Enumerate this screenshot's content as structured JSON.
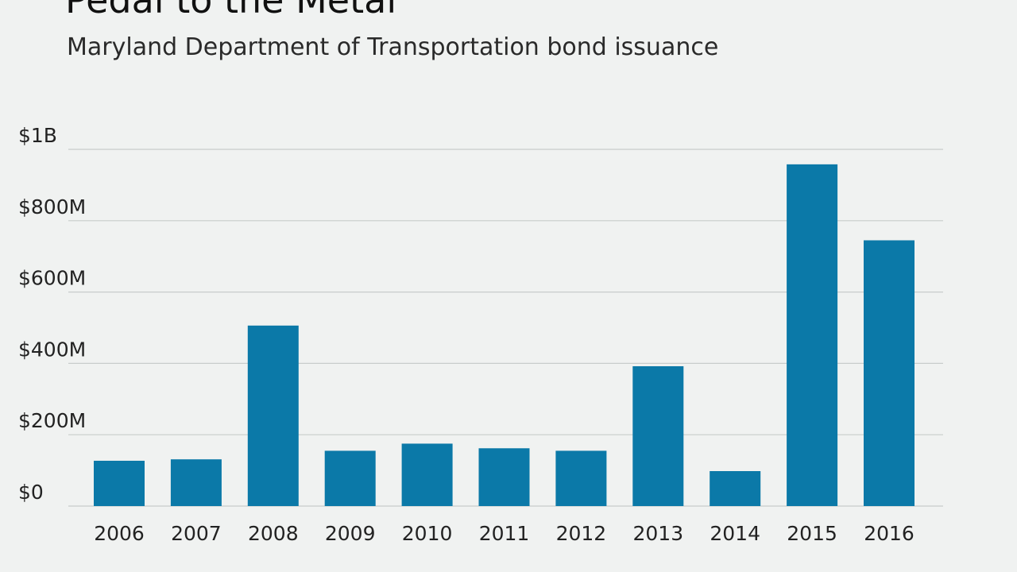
{
  "chart_data": {
    "type": "bar",
    "title": "Pedal to the Metal",
    "subtitle": "Maryland Department of Transportation bond issuance",
    "categories": [
      "2006",
      "2007",
      "2008",
      "2009",
      "2010",
      "2011",
      "2012",
      "2013",
      "2014",
      "2015",
      "2016"
    ],
    "values": [
      127,
      131,
      506,
      155,
      175,
      162,
      155,
      392,
      98,
      958,
      745
    ],
    "value_unit": "millions of dollars",
    "ylim": [
      0,
      1000
    ],
    "yticks": [
      0,
      200,
      400,
      600,
      800,
      1000
    ],
    "ytick_labels": [
      "$0",
      "$200M",
      "$400M",
      "$600M",
      "$800M",
      "$1B"
    ],
    "xlabel": "",
    "ylabel": "",
    "grid": true,
    "legend": "none",
    "bar_color": "#0b79a8",
    "grid_color": "#c8cccb",
    "background_color": "#f0f2f1"
  }
}
